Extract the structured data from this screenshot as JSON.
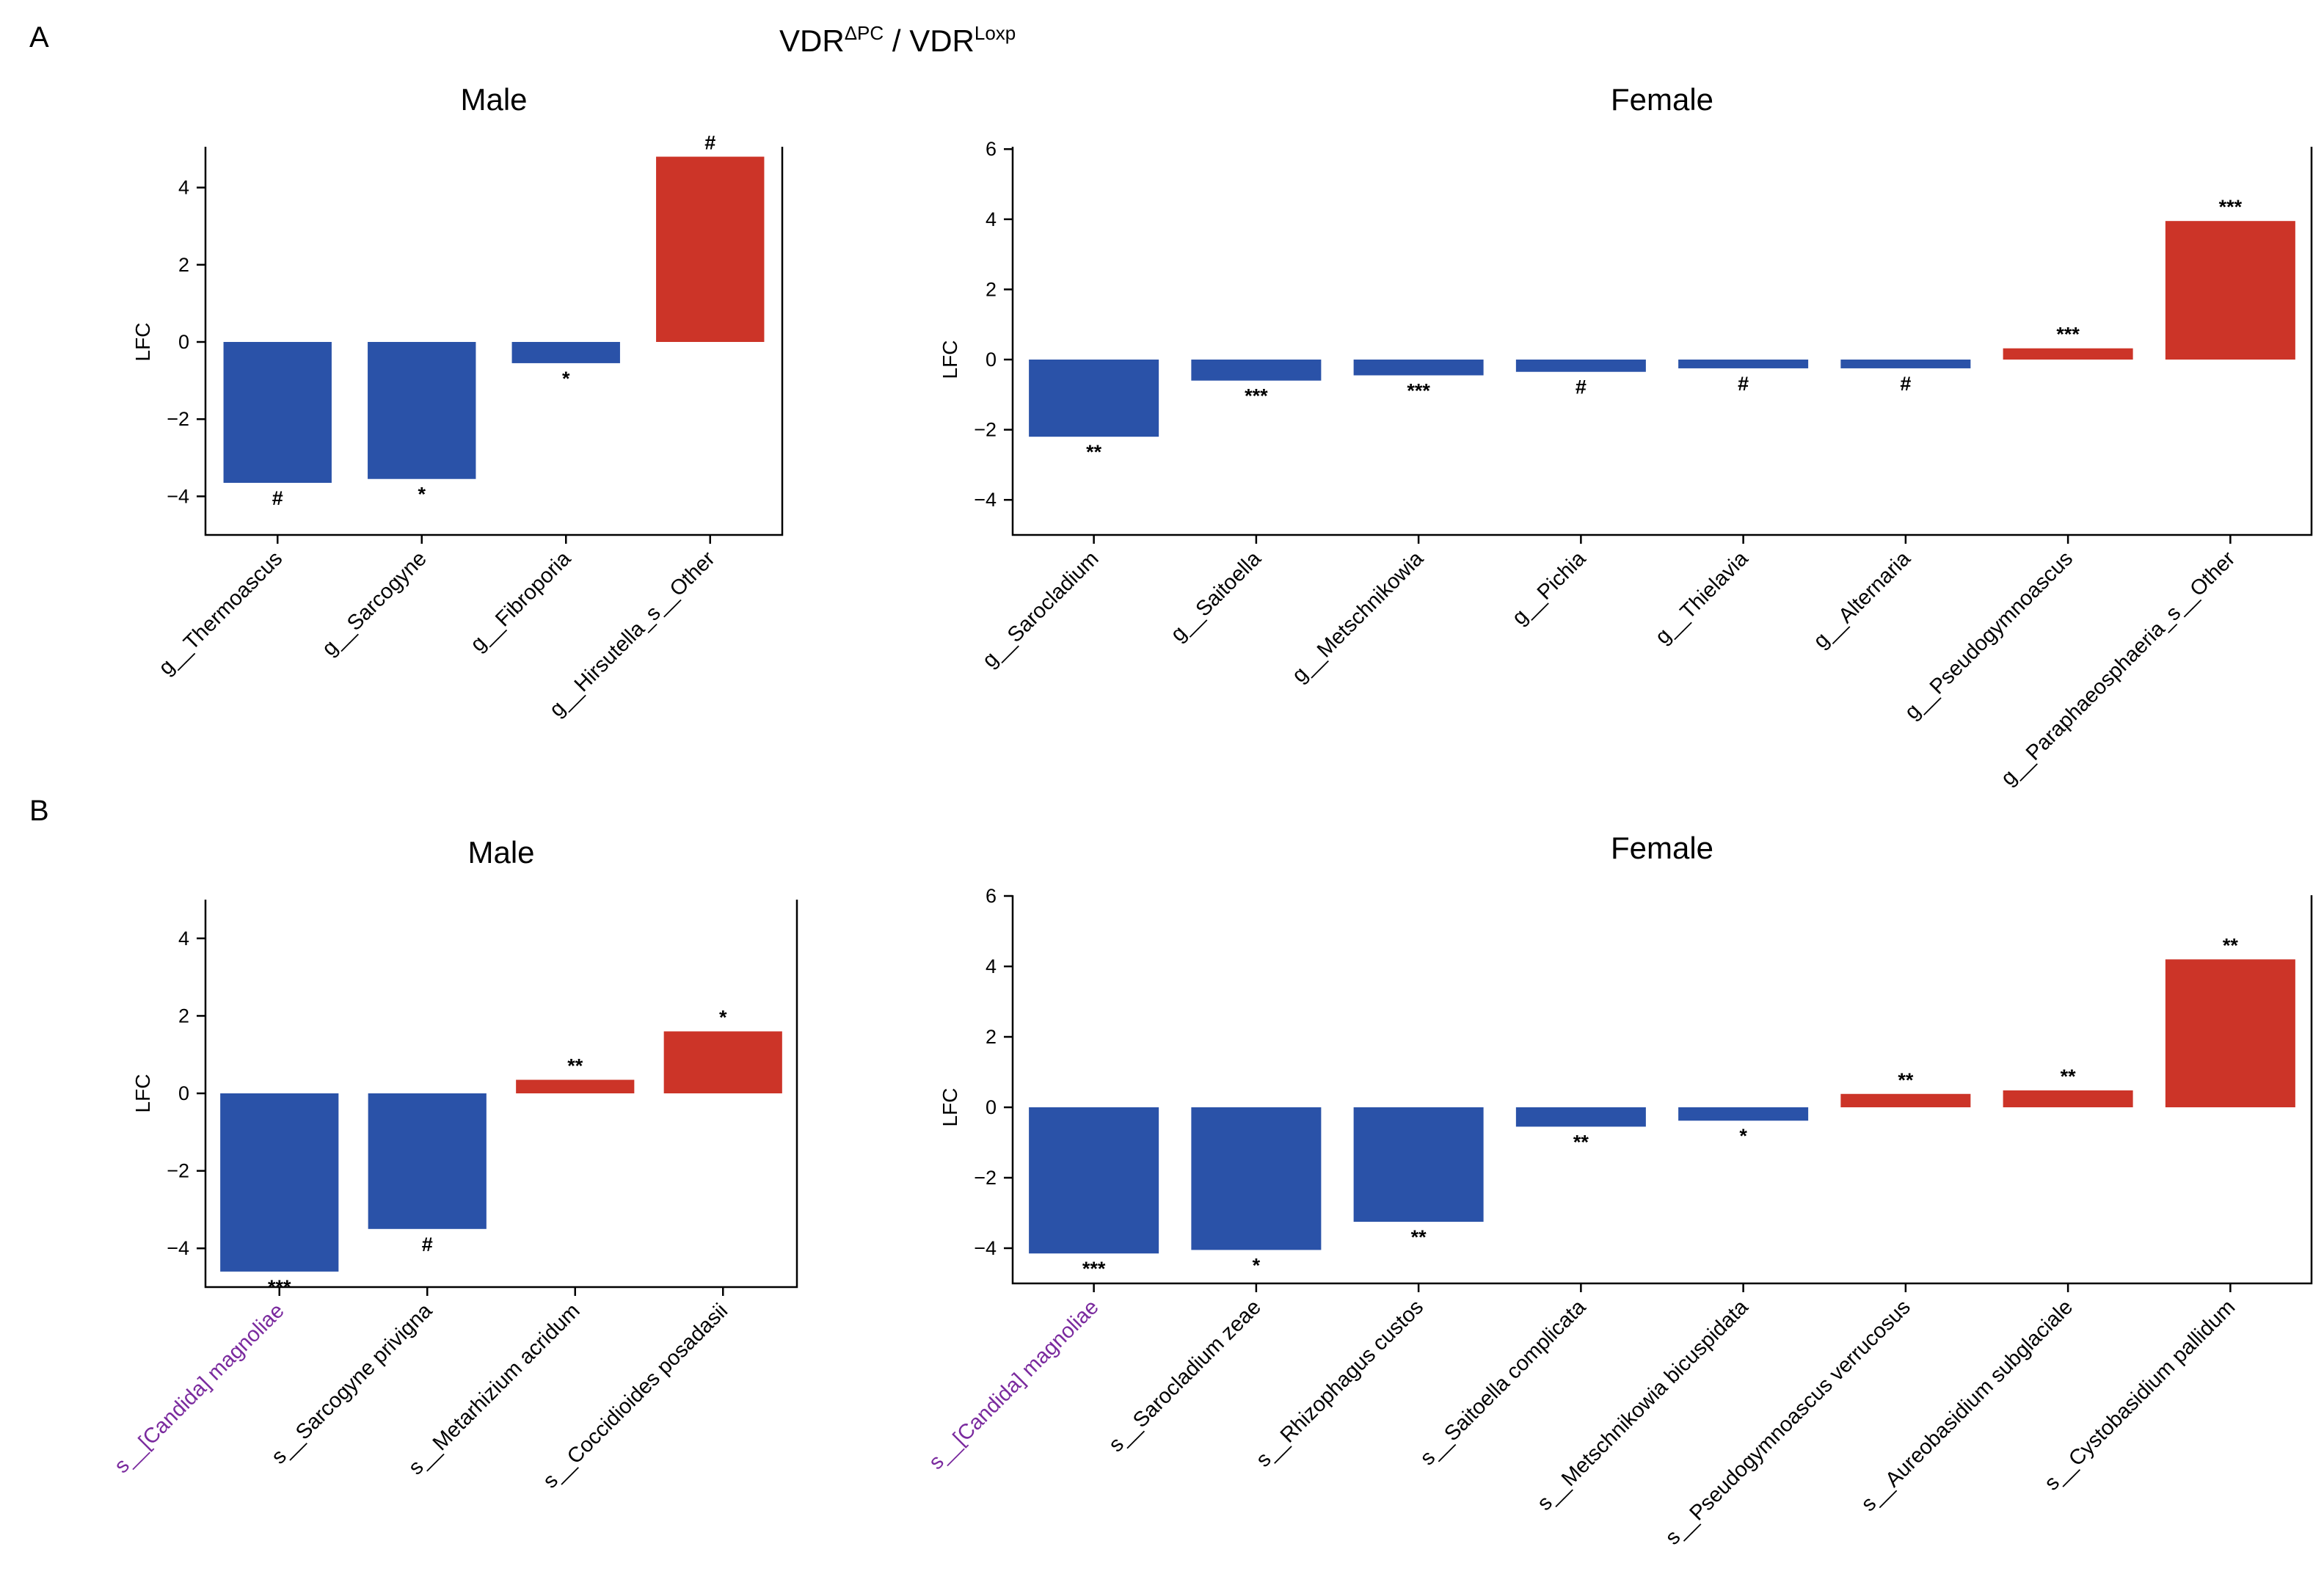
{
  "figure": {
    "panel_labels": [
      "A",
      "B"
    ],
    "header": {
      "prefix_a": "VDR",
      "sup_a": "ΔPC",
      "separator": " / VDR",
      "sup_b": "Loxp"
    },
    "colors": {
      "negative": "#2a52a8",
      "positive": "#cc3428",
      "highlight_label": "#7a2a9e",
      "axis": "#000000"
    }
  },
  "chart_data": [
    {
      "id": "A-male",
      "type": "bar",
      "title": "Male",
      "ylabel": "LFC",
      "ylim": [
        -5,
        5
      ],
      "yticks": [
        4,
        2,
        0,
        -2,
        -4
      ],
      "categories": [
        "g__Thermoascus",
        "g__Sarcogyne",
        "g__Fibroporia",
        "g__Hirsutella_s__Other"
      ],
      "values": [
        -3.65,
        -3.55,
        -0.55,
        4.8
      ],
      "significance": [
        "#",
        "*",
        "*",
        "#"
      ],
      "highlight": []
    },
    {
      "id": "A-female",
      "type": "bar",
      "title": "Female",
      "ylabel": "LFC",
      "ylim": [
        -5,
        6
      ],
      "yticks": [
        6,
        4,
        2,
        0,
        -2,
        -4
      ],
      "categories": [
        "g__Sarocladium",
        "g__Saitoella",
        "g__Metschnikowia",
        "g__Pichia",
        "g__Thielavia",
        "g__Alternaria",
        "g__Pseudogymnoascus",
        "g__Paraphaeosphaeria_s__Other"
      ],
      "values": [
        -2.2,
        -0.6,
        -0.45,
        -0.35,
        -0.25,
        -0.25,
        0.32,
        3.95
      ],
      "significance": [
        "**",
        "***",
        "***",
        "#",
        "#",
        "#",
        "***",
        "***"
      ],
      "highlight": []
    },
    {
      "id": "B-male",
      "type": "bar",
      "title": "Male",
      "ylabel": "LFC",
      "ylim": [
        -5,
        5
      ],
      "yticks": [
        4,
        2,
        0,
        -2,
        -4
      ],
      "categories": [
        "s__[Candida] magnoliae",
        "s__Sarcogyne privigna",
        "s__Metarhizium acridum",
        "s__Coccidioides posadasii"
      ],
      "values": [
        -4.6,
        -3.5,
        0.35,
        1.6
      ],
      "significance": [
        "***",
        "#",
        "**",
        "*"
      ],
      "highlight": [
        0
      ]
    },
    {
      "id": "B-female",
      "type": "bar",
      "title": "Female",
      "ylabel": "LFC",
      "ylim": [
        -5,
        6
      ],
      "yticks": [
        6,
        4,
        2,
        0,
        -2,
        -4
      ],
      "categories": [
        "s__[Candida] magnoliae",
        "s__Sarocladium zeae",
        "s__Rhizophagus custos",
        "s__Saitoella complicata",
        "s__Metschnikowia bicuspidata",
        "s__Pseudogymnoascus verrucosus",
        "s__Aureobasidium subglaciale",
        "s__Cystobasidium pallidum"
      ],
      "values": [
        -4.15,
        -4.05,
        -3.25,
        -0.55,
        -0.38,
        0.38,
        0.48,
        4.2
      ],
      "significance": [
        "***",
        "*",
        "**",
        "**",
        "*",
        "**",
        "**",
        "**"
      ],
      "highlight": [
        0
      ]
    }
  ]
}
